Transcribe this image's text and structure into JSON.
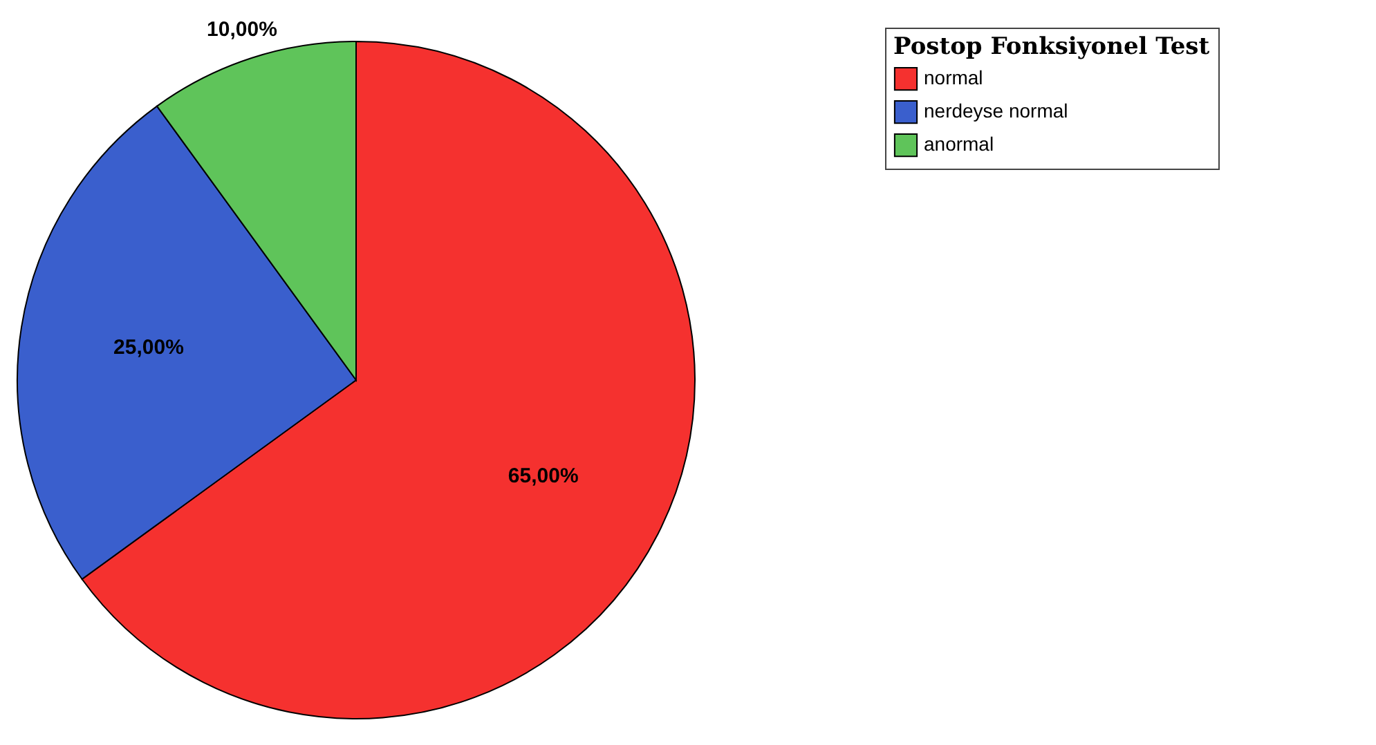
{
  "chart_data": {
    "type": "pie",
    "legend_title": "Postop Fonksiyonel Test",
    "legend": "top right",
    "categories": [
      "normal",
      "nerdeyse normal",
      "anormal"
    ],
    "values": [
      65,
      25,
      10
    ],
    "colors": [
      "#f5312f",
      "#3a5fcd",
      "#5fc45a"
    ],
    "value_labels": [
      "65,00%",
      "25,00%",
      "10,00%"
    ]
  }
}
